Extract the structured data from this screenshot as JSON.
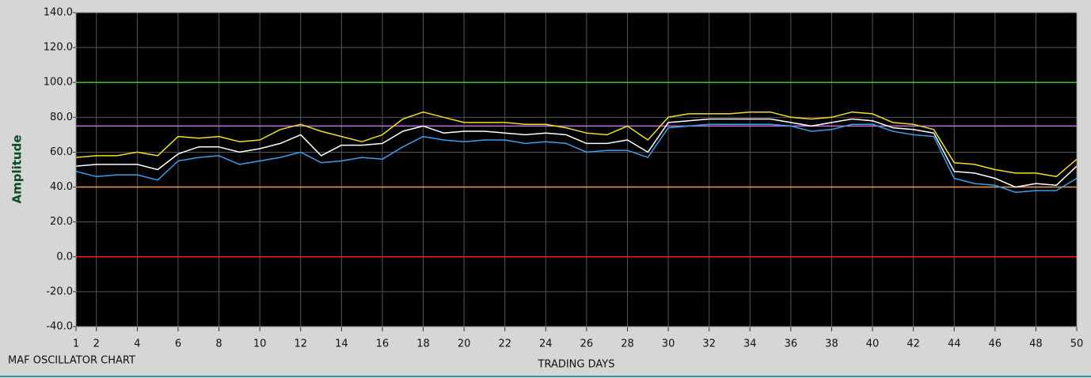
{
  "chart_data": {
    "type": "line",
    "caption": "MAF OSCILLATOR CHART",
    "x_label": "TRADING DAYS",
    "y_label": "Amplitude",
    "x": [
      1,
      2,
      3,
      4,
      5,
      6,
      7,
      8,
      9,
      10,
      11,
      12,
      13,
      14,
      15,
      16,
      17,
      18,
      19,
      20,
      21,
      22,
      23,
      24,
      25,
      26,
      27,
      28,
      29,
      30,
      31,
      32,
      33,
      34,
      35,
      36,
      37,
      38,
      39,
      40,
      41,
      42,
      43,
      44,
      45,
      46,
      47,
      48,
      49,
      50
    ],
    "xlim": [
      1,
      50
    ],
    "xticks": [
      1,
      2,
      4,
      6,
      8,
      10,
      12,
      14,
      16,
      18,
      20,
      22,
      24,
      26,
      28,
      30,
      32,
      34,
      36,
      38,
      40,
      42,
      44,
      46,
      48,
      50
    ],
    "ylim": [
      -40,
      140
    ],
    "yticks": [
      {
        "value": -40,
        "label": "-40.0"
      },
      {
        "value": -20,
        "label": "-20.0"
      },
      {
        "value": 0,
        "label": "0.0"
      },
      {
        "value": 20,
        "label": "20.0"
      },
      {
        "value": 40,
        "label": "40.0"
      },
      {
        "value": 60,
        "label": "60.0"
      },
      {
        "value": 80,
        "label": "80.0"
      },
      {
        "value": 100,
        "label": "100.0"
      },
      {
        "value": 120,
        "label": "120.0"
      },
      {
        "value": 140,
        "label": "140.0"
      }
    ],
    "grid": true,
    "hlines": [
      {
        "value": 100,
        "color": "#33c833"
      },
      {
        "value": 75,
        "color": "#c070e0"
      },
      {
        "value": 40,
        "color": "#f0a040"
      },
      {
        "value": 0,
        "color": "#ff1010"
      }
    ],
    "series": [
      {
        "color": "#f0e020",
        "values": [
          57,
          58,
          58,
          60,
          58,
          69,
          68,
          69,
          66,
          67,
          73,
          76,
          72,
          69,
          66,
          70,
          79,
          83,
          80,
          77,
          77,
          77,
          76,
          76,
          74,
          71,
          70,
          75,
          67,
          80,
          82,
          82,
          82,
          83,
          83,
          80,
          79,
          80,
          83,
          82,
          77,
          76,
          73,
          54,
          53,
          50,
          48,
          48,
          46,
          56
        ]
      },
      {
        "color": "#ffffff",
        "values": [
          52,
          53,
          53,
          53,
          50,
          59,
          63,
          63,
          60,
          62,
          65,
          70,
          58,
          64,
          64,
          65,
          72,
          75,
          71,
          72,
          72,
          71,
          70,
          71,
          70,
          65,
          65,
          67,
          60,
          77,
          78,
          79,
          79,
          79,
          79,
          77,
          75,
          77,
          79,
          78,
          74,
          73,
          71,
          49,
          48,
          45,
          40,
          42,
          41,
          52
        ]
      },
      {
        "color": "#3a9ef0",
        "values": [
          49,
          46,
          47,
          47,
          44,
          55,
          57,
          58,
          53,
          55,
          57,
          60,
          54,
          55,
          57,
          56,
          63,
          69,
          67,
          66,
          67,
          67,
          65,
          66,
          65,
          60,
          61,
          61,
          57,
          74,
          75,
          76,
          76,
          76,
          76,
          75,
          72,
          73,
          76,
          76,
          72,
          70,
          69,
          45,
          42,
          41,
          37,
          38,
          38,
          45
        ]
      }
    ]
  }
}
